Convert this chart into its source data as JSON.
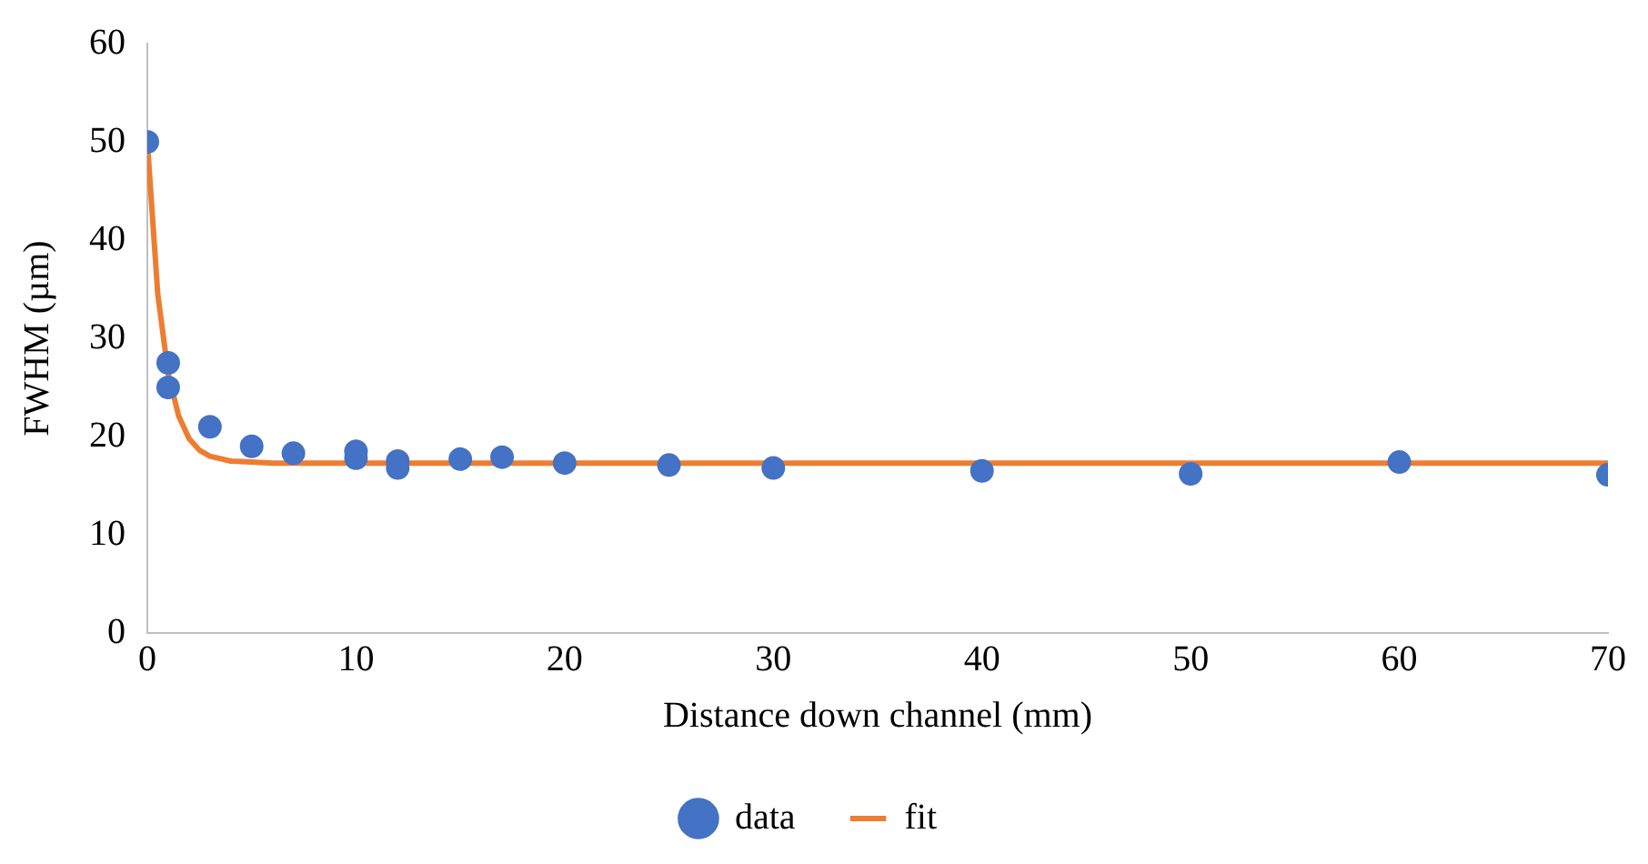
{
  "chart_data": {
    "type": "scatter",
    "xlabel": "Distance down channel (mm)",
    "ylabel": "FWHM (µm)",
    "xlim": [
      0,
      70
    ],
    "xticks": [
      0,
      10,
      20,
      30,
      40,
      50,
      60,
      70
    ],
    "ylim": [
      0,
      60
    ],
    "yticks": [
      0,
      10,
      20,
      30,
      40,
      50,
      60
    ],
    "grid": false,
    "legend": "bottom",
    "series": [
      {
        "name": "data",
        "color": "#4472c4",
        "marker": "circle",
        "x": [
          0,
          1,
          1,
          3,
          5,
          7,
          10,
          10,
          12,
          12,
          15,
          17,
          20,
          25,
          30,
          40,
          50,
          60,
          70
        ],
        "values": [
          50,
          27.5,
          25,
          21,
          19,
          18.3,
          18.5,
          17.8,
          17.5,
          16.8,
          17.7,
          17.9,
          17.3,
          17.1,
          16.8,
          16.5,
          16.2,
          17.4,
          16.1
        ]
      },
      {
        "name": "fit",
        "type": "line",
        "color": "#ed7d31",
        "marker": "none",
        "line_style": "solid",
        "x": [
          0,
          0.5,
          1,
          1.5,
          2,
          2.5,
          3,
          4,
          5,
          6,
          8,
          70
        ],
        "values": [
          50,
          34.5,
          26.4,
          22.1,
          19.8,
          18.6,
          18,
          17.5,
          17.4,
          17.3,
          17.3,
          17.3
        ]
      }
    ]
  }
}
